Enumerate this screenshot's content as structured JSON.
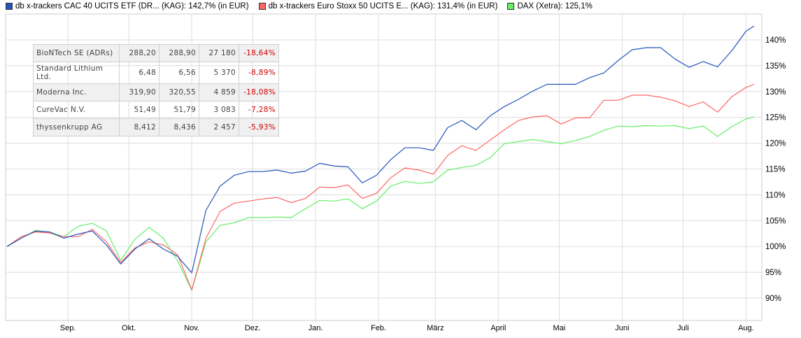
{
  "legend": [
    {
      "label": "db x-trackers CAC 40 UCITS ETF (DR... (KAG): 142,7% (in EUR)",
      "color": "#2255bb"
    },
    {
      "label": "db x-trackers Euro Stoxx 50 UCITS E... (KAG): 131,4% (in EUR)",
      "color": "#ff6666"
    },
    {
      "label": "DAX (Xetra): 125,1%",
      "color": "#66ee66"
    }
  ],
  "table": [
    {
      "name": "BioNTech SE (ADRs)",
      "bid": "288,20",
      "ask": "288,90",
      "volume": "27 180",
      "change": "-18,64%"
    },
    {
      "name": "Standard Lithium Ltd.",
      "bid": "6,48",
      "ask": "6,56",
      "volume": "5 370",
      "change": "-8,89%"
    },
    {
      "name": "Moderna Inc.",
      "bid": "319,90",
      "ask": "320,55",
      "volume": "4 859",
      "change": "-18,08%"
    },
    {
      "name": "CureVac N.V.",
      "bid": "51,49",
      "ask": "51,79",
      "volume": "3 083",
      "change": "-7,28%"
    },
    {
      "name": "thyssenkrupp AG",
      "bid": "8,412",
      "ask": "8,436",
      "volume": "2 457",
      "change": "-5,93%"
    }
  ],
  "chart_data": {
    "type": "line",
    "xlabel": "",
    "ylabel": "",
    "ylim": [
      85,
      145
    ],
    "grid": true,
    "legend_position": "top",
    "x_tick_labels": [
      "Sep.",
      "Okt.",
      "Nov.",
      "Dez.",
      "Jan.",
      "Feb.",
      "März",
      "April",
      "Mai",
      "Juni",
      "Juli",
      "Aug."
    ],
    "x_tick_dates": [
      "2021-09-01",
      "2021-10-01",
      "2021-11-01",
      "2021-12-01",
      "2022-01-01",
      "2022-02-01",
      "2022-03-01",
      "2022-04-01",
      "2022-05-01",
      "2022-06-01",
      "2022-07-01",
      "2022-08-01"
    ],
    "y_ticks": [
      90,
      95,
      100,
      105,
      110,
      115,
      120,
      125,
      130,
      135,
      140
    ],
    "y_tick_labels": [
      "90%",
      "95%",
      "100%",
      "105%",
      "110%",
      "115%",
      "120%",
      "125%",
      "130%",
      "135%",
      "140%"
    ],
    "x": [
      "2021-08-02",
      "2021-08-09",
      "2021-08-16",
      "2021-08-23",
      "2021-08-30",
      "2021-09-06",
      "2021-09-13",
      "2021-09-20",
      "2021-09-27",
      "2021-10-04",
      "2021-10-11",
      "2021-10-18",
      "2021-10-25",
      "2021-11-01",
      "2021-11-08",
      "2021-11-15",
      "2021-11-22",
      "2021-11-29",
      "2021-12-06",
      "2021-12-13",
      "2021-12-20",
      "2021-12-27",
      "2022-01-03",
      "2022-01-10",
      "2022-01-17",
      "2022-01-24",
      "2022-01-31",
      "2022-02-07",
      "2022-02-14",
      "2022-02-21",
      "2022-02-28",
      "2022-03-07",
      "2022-03-14",
      "2022-03-21",
      "2022-03-28",
      "2022-04-04",
      "2022-04-11",
      "2022-04-18",
      "2022-04-25",
      "2022-05-02",
      "2022-05-09",
      "2022-05-16",
      "2022-05-23",
      "2022-05-30",
      "2022-06-06",
      "2022-06-13",
      "2022-06-20",
      "2022-06-27",
      "2022-07-04",
      "2022-07-11",
      "2022-07-18",
      "2022-07-25",
      "2022-08-01",
      "2022-08-05"
    ],
    "series": [
      {
        "name": "db x-trackers CAC 40 UCITS ETF (DR... (KAG)",
        "color": "#2255bb",
        "values": [
          100.0,
          101.6,
          103.0,
          102.8,
          101.6,
          102.4,
          103.0,
          100.3,
          96.6,
          99.5,
          101.5,
          99.5,
          98.1,
          94.9,
          107.0,
          111.7,
          113.8,
          114.5,
          114.5,
          114.8,
          114.2,
          114.6,
          116.1,
          115.6,
          115.4,
          112.3,
          113.8,
          116.8,
          119.1,
          119.1,
          118.6,
          123.0,
          124.4,
          122.6,
          125.3,
          127.1,
          128.5,
          130.1,
          131.4,
          131.4,
          131.4,
          132.7,
          133.6,
          136.0,
          138.1,
          138.5,
          138.5,
          136.3,
          134.7,
          135.8,
          134.8,
          137.9,
          141.7,
          142.7
        ]
      },
      {
        "name": "db x-trackers Euro Stoxx 50 UCITS E... (KAG)",
        "color": "#ff6666",
        "values": [
          100.0,
          101.9,
          102.8,
          102.6,
          101.9,
          101.9,
          103.3,
          100.9,
          96.9,
          99.7,
          100.9,
          100.3,
          98.4,
          91.6,
          101.6,
          106.8,
          108.4,
          108.8,
          109.2,
          109.5,
          108.5,
          109.3,
          111.5,
          111.4,
          111.9,
          109.3,
          110.3,
          113.3,
          115.2,
          114.8,
          114.0,
          117.6,
          119.5,
          118.6,
          120.6,
          122.6,
          124.4,
          125.1,
          125.3,
          123.7,
          124.9,
          124.9,
          128.3,
          128.3,
          129.3,
          129.3,
          128.9,
          128.2,
          127.1,
          128.0,
          126.0,
          129.0,
          130.8,
          131.4
        ]
      },
      {
        "name": "DAX (Xetra)",
        "color": "#66ee66",
        "values": [
          100.0,
          101.6,
          103.1,
          102.8,
          101.9,
          103.9,
          104.5,
          103.0,
          97.3,
          101.4,
          103.7,
          101.6,
          97.2,
          91.5,
          100.9,
          104.1,
          104.6,
          105.6,
          105.6,
          105.7,
          105.6,
          107.3,
          108.9,
          108.8,
          109.2,
          107.3,
          108.8,
          111.7,
          112.6,
          112.2,
          112.5,
          114.8,
          115.3,
          115.7,
          117.2,
          119.9,
          120.3,
          120.7,
          120.3,
          119.9,
          120.5,
          121.3,
          122.5,
          123.3,
          123.2,
          123.4,
          123.3,
          123.4,
          122.8,
          123.3,
          121.3,
          123.2,
          124.7,
          125.1
        ]
      }
    ]
  }
}
